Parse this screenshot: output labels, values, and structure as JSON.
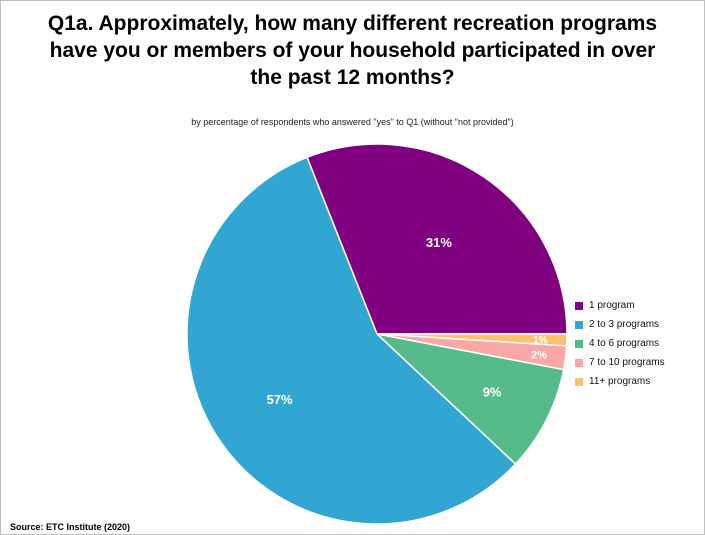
{
  "title_lines": [
    "Q1a. Approximately, how many different recreation programs",
    "have you or members of your household participated in over",
    "the past 12 months?"
  ],
  "subtitle": "by percentage of respondents who answered \"yes\" to Q1 (without \"not provided\")",
  "source": "Source:  ETC Institute (2020)",
  "chart_data": {
    "type": "pie",
    "title": "Q1a. Approximately, how many different recreation programs have you or members of your household participated in over the past 12 months?",
    "subtitle": "by percentage of respondents who answered \"yes\" to Q1 (without \"not provided\")",
    "legend_position": "right",
    "slices": [
      {
        "label": "1 program",
        "value": 31,
        "display": "31%",
        "color": "#800080"
      },
      {
        "label": "11+ programs",
        "value": 1,
        "display": "1%",
        "color": "#FFC06E"
      },
      {
        "label": "7 to 10 programs",
        "value": 2,
        "display": "2%",
        "color": "#F9A7A7"
      },
      {
        "label": "4 to 6 programs",
        "value": 9,
        "display": "9%",
        "color": "#55BB8A"
      },
      {
        "label": "2 to 3 programs",
        "value": 57,
        "display": "57%",
        "color": "#31A6D2"
      }
    ],
    "legend_order": [
      "1 program",
      "2 to 3 programs",
      "4 to 6 programs",
      "7 to 10 programs",
      "11+ programs"
    ]
  }
}
